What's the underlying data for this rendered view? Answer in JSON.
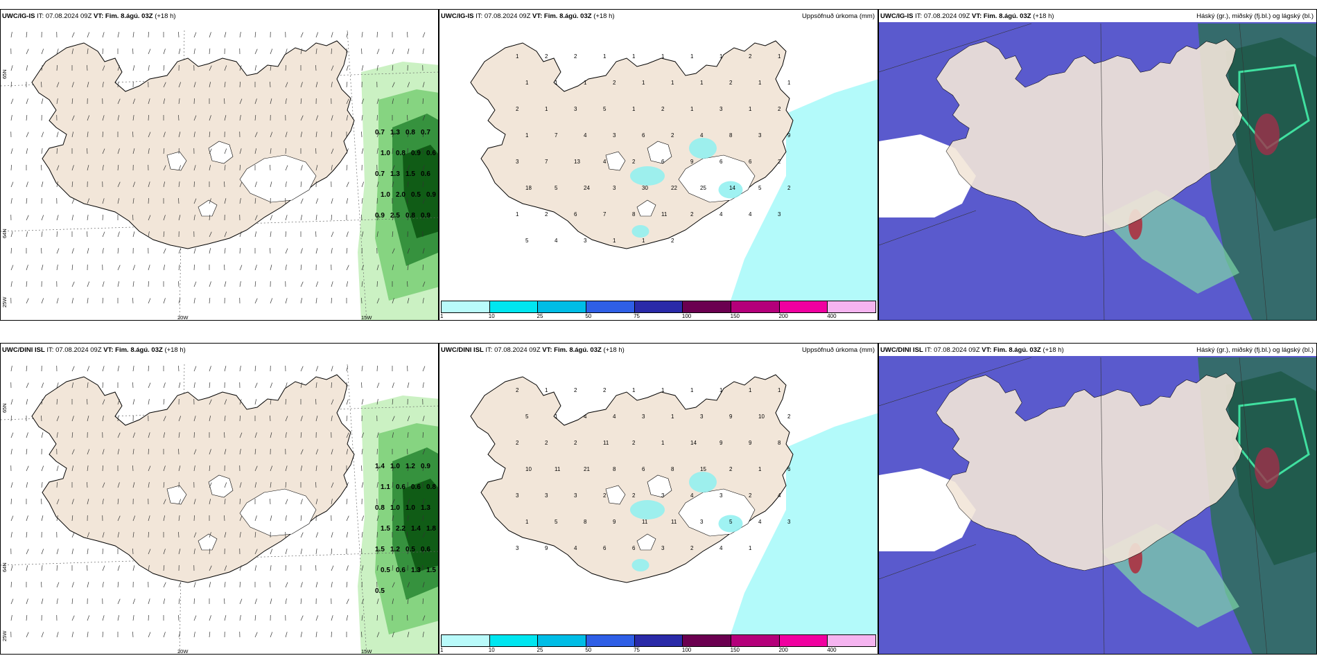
{
  "rows": [
    {
      "model": "UWC/IG-IS",
      "it_label": "IT:",
      "it_value": "07.08.2024 09Z",
      "vt_label": "VT:",
      "vt_value": "Fim. 8.ágú. 03Z",
      "lead": "(+18 h)"
    },
    {
      "model": "UWC/DINI ISL",
      "it_label": "IT:",
      "it_value": "07.08.2024 09Z",
      "vt_label": "VT:",
      "vt_value": "Fim. 8.ágú. 03Z",
      "lead": "(+18 h)"
    }
  ],
  "precip_title": "Uppsöfnuð úrkoma (mm)",
  "cloud_title": "Háský (gr.), miðský (fj.bl.) og lágský (bl.)",
  "legend": {
    "ticks": [
      "1",
      "10",
      "25",
      "50",
      "75",
      "100",
      "150",
      "200",
      "400"
    ],
    "colors": [
      "#b9fafa",
      "#00e6f0",
      "#00bde6",
      "#2f5fe6",
      "#2a2aa8",
      "#6b0050",
      "#b4007a",
      "#f000a0",
      "#f5b4f0"
    ]
  },
  "axis_labels": {
    "lat65": "65N",
    "lat64": "64N",
    "lon25": "25W",
    "lon20": "20W",
    "lon15": "15W"
  },
  "colors": {
    "land": "#f2e6d9",
    "sea_precip": "#b3fafa",
    "cloud_bg": "#5a5acd",
    "wind_green_light": "#c8f0c0",
    "wind_green_dark": "#0f5a14"
  },
  "wind_values_ig": [
    "0.7",
    "1.3",
    "0.8",
    "0.7",
    "1.0",
    "0.8",
    "0.9",
    "0.6",
    "0.7",
    "1.3",
    "1.5",
    "0.6",
    "1.0",
    "2.0",
    "0.5",
    "0.9",
    "0.9",
    "2.5",
    "0.8",
    "0.9"
  ],
  "wind_values_dini": [
    "1.4",
    "1.0",
    "1.2",
    "0.9",
    "1.1",
    "0.6",
    "0.6",
    "0.8",
    "0.8",
    "1.0",
    "1.0",
    "1.3",
    "1.5",
    "2.2",
    "1.4",
    "1.8",
    "1.5",
    "1.2",
    "0.5",
    "0.6",
    "0.5",
    "0.6",
    "1.3",
    "1.5",
    "0.5"
  ],
  "precip_values_ig": [
    "1",
    "2",
    "2",
    "1",
    "1",
    "1",
    "1",
    "1",
    "2",
    "1",
    "1",
    "1",
    "1",
    "2",
    "1",
    "1",
    "1",
    "2",
    "1",
    "1",
    "2",
    "1",
    "3",
    "5",
    "1",
    "2",
    "1",
    "3",
    "1",
    "2",
    "1",
    "7",
    "4",
    "3",
    "6",
    "2",
    "4",
    "8",
    "3",
    "9",
    "3",
    "7",
    "13",
    "4",
    "2",
    "6",
    "9",
    "6",
    "6",
    "2",
    "18",
    "5",
    "24",
    "3",
    "30",
    "22",
    "25",
    "14",
    "5",
    "2",
    "1",
    "2",
    "6",
    "7",
    "8",
    "11",
    "2",
    "4",
    "4",
    "3",
    "5",
    "4",
    "3",
    "1",
    "1",
    "2"
  ],
  "precip_values_dini": [
    "2",
    "1",
    "2",
    "2",
    "1",
    "1",
    "1",
    "1",
    "1",
    "1",
    "5",
    "1",
    "4",
    "4",
    "3",
    "1",
    "3",
    "9",
    "10",
    "2",
    "2",
    "2",
    "2",
    "11",
    "2",
    "1",
    "14",
    "9",
    "9",
    "8",
    "10",
    "11",
    "21",
    "8",
    "6",
    "8",
    "15",
    "2",
    "1",
    "6",
    "3",
    "3",
    "3",
    "2",
    "2",
    "3",
    "4",
    "3",
    "2",
    "4",
    "1",
    "5",
    "8",
    "9",
    "11",
    "11",
    "3",
    "5",
    "4",
    "3",
    "3",
    "9",
    "4",
    "6",
    "6",
    "3",
    "2",
    "4",
    "1"
  ]
}
